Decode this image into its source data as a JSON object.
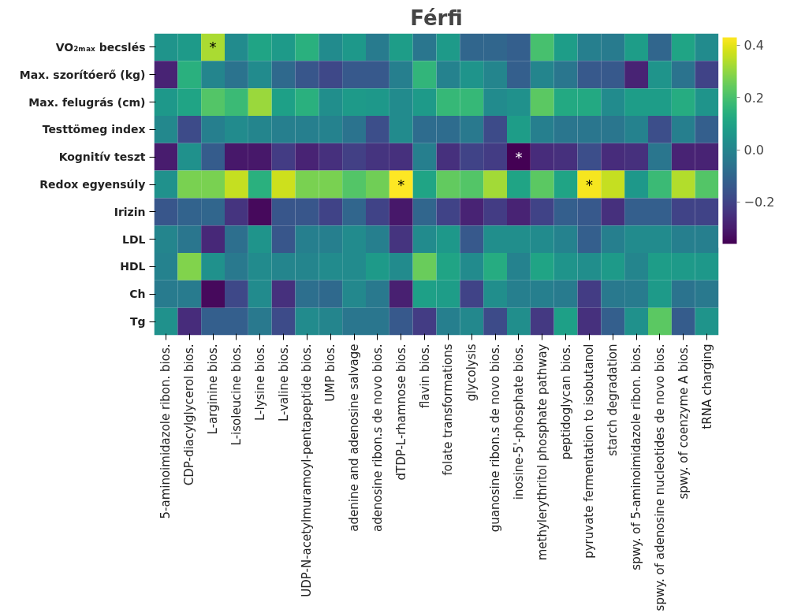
{
  "chart_data": {
    "type": "heatmap",
    "title": "Férfi",
    "categories": [
      "5-aminoimidazole ribon. bios.",
      "CDP-diacylglycerol bios.",
      "L-arginine bios.",
      "L-isoleucine bios.",
      "L-lysine bios.",
      "L-valine bios.",
      "UDP-N-acetylmuramoyl-pentapeptide bios.",
      "UMP bios.",
      "adenine and adenosine salvage",
      "adenosine ribon.s de novo bios.",
      "dTDP-L-rhamnose bios.",
      "flavin bios.",
      "folate transformations",
      "glycolysis",
      "guanosine ribon.s de novo bios.",
      "inosine-5'-phosphate bios.",
      "methylerythritol phosphate pathway",
      "peptidoglycan bios.",
      "pyruvate fermentation to isobutanol",
      "starch degradation",
      "spwy. of 5-aminoimidazole ribon. bios.",
      "spwy. of adenosine nucleotides de novo bios.",
      "spwy. of coenzyme A bios.",
      "tRNA charging"
    ],
    "y_categories": [
      "VO₂ₘₐₓ becslés",
      "Max. szorítóerő (kg)",
      "Max. felugrás (cm)",
      "Testtömeg index",
      "Kognitív teszt",
      "Redox egyensúly",
      "Irizin",
      "LDL",
      "HDL",
      "Ch",
      "Tg"
    ],
    "cells": [
      [
        0.05,
        0.07,
        0.33,
        0.02,
        0.1,
        0.07,
        0.14,
        0.02,
        0.06,
        -0.03,
        0.08,
        -0.05,
        0.07,
        -0.1,
        -0.1,
        -0.12,
        0.2,
        0.08,
        -0.02,
        -0.03,
        0.08,
        -0.1,
        0.1,
        0.02
      ],
      [
        -0.28,
        0.14,
        0.0,
        -0.06,
        0.02,
        -0.09,
        -0.15,
        -0.19,
        -0.14,
        -0.14,
        -0.02,
        0.16,
        -0.01,
        0.05,
        0.0,
        -0.12,
        0.0,
        -0.05,
        -0.14,
        -0.14,
        -0.28,
        0.05,
        -0.06,
        -0.2
      ],
      [
        0.06,
        0.1,
        0.22,
        0.18,
        0.31,
        0.09,
        0.14,
        0.03,
        0.07,
        0.06,
        0.02,
        0.07,
        0.17,
        0.17,
        0.02,
        0.04,
        0.23,
        0.12,
        0.12,
        0.02,
        0.08,
        0.08,
        0.13,
        0.05
      ],
      [
        0.01,
        -0.18,
        -0.02,
        0.02,
        0.0,
        -0.02,
        -0.02,
        -0.01,
        -0.06,
        -0.17,
        0.02,
        -0.08,
        -0.08,
        -0.04,
        -0.18,
        0.08,
        -0.02,
        -0.05,
        -0.05,
        -0.05,
        -0.01,
        -0.17,
        -0.02,
        -0.12
      ],
      [
        -0.3,
        0.04,
        -0.13,
        -0.31,
        -0.31,
        -0.22,
        -0.28,
        -0.25,
        -0.21,
        -0.24,
        -0.25,
        -0.02,
        -0.25,
        -0.2,
        -0.22,
        -0.36,
        -0.26,
        -0.25,
        -0.17,
        -0.26,
        -0.25,
        -0.05,
        -0.28,
        -0.28
      ],
      [
        0.04,
        0.27,
        0.27,
        0.36,
        0.14,
        0.37,
        0.27,
        0.27,
        0.22,
        0.26,
        0.43,
        0.1,
        0.24,
        0.22,
        0.32,
        0.1,
        0.23,
        0.1,
        0.42,
        0.36,
        0.06,
        0.18,
        0.34,
        0.22
      ],
      [
        -0.15,
        -0.11,
        -0.1,
        -0.24,
        -0.34,
        -0.15,
        -0.15,
        -0.2,
        -0.1,
        -0.2,
        -0.31,
        -0.1,
        -0.2,
        -0.28,
        -0.22,
        -0.28,
        -0.2,
        -0.12,
        -0.14,
        -0.25,
        -0.12,
        -0.12,
        -0.2,
        -0.2
      ],
      [
        0.0,
        -0.05,
        -0.27,
        -0.07,
        0.05,
        -0.15,
        -0.02,
        -0.02,
        0.02,
        -0.02,
        -0.24,
        0.02,
        0.06,
        -0.14,
        0.03,
        0.03,
        0.02,
        -0.01,
        -0.12,
        -0.02,
        0.02,
        0.02,
        -0.02,
        -0.02
      ],
      [
        -0.01,
        0.28,
        0.04,
        -0.04,
        0.02,
        0.0,
        0.0,
        0.02,
        0.02,
        0.07,
        0.02,
        0.25,
        0.1,
        0.02,
        0.13,
        -0.01,
        0.1,
        0.05,
        0.03,
        0.07,
        0.0,
        0.08,
        0.07,
        0.06
      ],
      [
        -0.03,
        -0.03,
        -0.34,
        -0.19,
        0.02,
        -0.25,
        -0.07,
        -0.09,
        0.01,
        -0.04,
        -0.29,
        0.09,
        0.08,
        -0.2,
        0.03,
        -0.02,
        -0.02,
        -0.03,
        -0.22,
        -0.04,
        -0.03,
        0.07,
        -0.06,
        -0.04
      ],
      [
        0.04,
        -0.26,
        -0.12,
        -0.12,
        -0.04,
        -0.18,
        0.02,
        0.0,
        -0.05,
        -0.05,
        -0.14,
        -0.22,
        -0.02,
        0.01,
        -0.18,
        0.03,
        -0.23,
        0.09,
        -0.25,
        -0.12,
        0.04,
        0.23,
        -0.13,
        0.05
      ]
    ],
    "clim": [
      -0.36,
      0.43
    ],
    "cticks": [
      {
        "value": -0.2,
        "label": "−0.2"
      },
      {
        "value": 0,
        "label": "0.0"
      },
      0.2,
      0.4
    ],
    "cell_labels": [
      [
        null,
        null,
        "*",
        null,
        null,
        null,
        null,
        null,
        null,
        null,
        null,
        null,
        null,
        null,
        null,
        null,
        null,
        null,
        null,
        null,
        null,
        null,
        null,
        null
      ],
      [
        null,
        null,
        null,
        null,
        null,
        null,
        null,
        null,
        null,
        null,
        null,
        null,
        null,
        null,
        null,
        null,
        null,
        null,
        null,
        null,
        null,
        null,
        null,
        null
      ],
      [
        null,
        null,
        null,
        null,
        null,
        null,
        null,
        null,
        null,
        null,
        null,
        null,
        null,
        null,
        null,
        null,
        null,
        null,
        null,
        null,
        null,
        null,
        null,
        null
      ],
      [
        null,
        null,
        null,
        null,
        null,
        null,
        null,
        null,
        null,
        null,
        null,
        null,
        null,
        null,
        null,
        null,
        null,
        null,
        null,
        null,
        null,
        null,
        null,
        null
      ],
      [
        null,
        null,
        null,
        null,
        null,
        null,
        null,
        null,
        null,
        null,
        null,
        null,
        null,
        null,
        null,
        "*",
        null,
        null,
        null,
        null,
        null,
        null,
        null,
        null
      ],
      [
        null,
        null,
        null,
        null,
        null,
        null,
        null,
        null,
        null,
        null,
        "*",
        null,
        null,
        null,
        null,
        null,
        null,
        null,
        "*",
        null,
        null,
        null,
        null,
        null
      ],
      [
        null,
        null,
        null,
        null,
        null,
        null,
        null,
        null,
        null,
        null,
        null,
        null,
        null,
        null,
        null,
        null,
        null,
        null,
        null,
        null,
        null,
        null,
        null,
        null
      ],
      [
        null,
        null,
        null,
        null,
        null,
        null,
        null,
        null,
        null,
        null,
        null,
        null,
        null,
        null,
        null,
        null,
        null,
        null,
        null,
        null,
        null,
        null,
        null,
        null
      ],
      [
        null,
        null,
        null,
        null,
        null,
        null,
        null,
        null,
        null,
        null,
        null,
        null,
        null,
        null,
        null,
        null,
        null,
        null,
        null,
        null,
        null,
        null,
        null,
        null
      ],
      [
        null,
        null,
        null,
        null,
        null,
        null,
        null,
        null,
        null,
        null,
        null,
        null,
        null,
        null,
        null,
        null,
        null,
        null,
        null,
        null,
        null,
        null,
        null,
        null
      ],
      [
        null,
        null,
        null,
        null,
        null,
        null,
        null,
        null,
        null,
        null,
        null,
        null,
        null,
        null,
        null,
        null,
        null,
        null,
        null,
        null,
        null,
        null,
        null,
        null
      ]
    ]
  }
}
